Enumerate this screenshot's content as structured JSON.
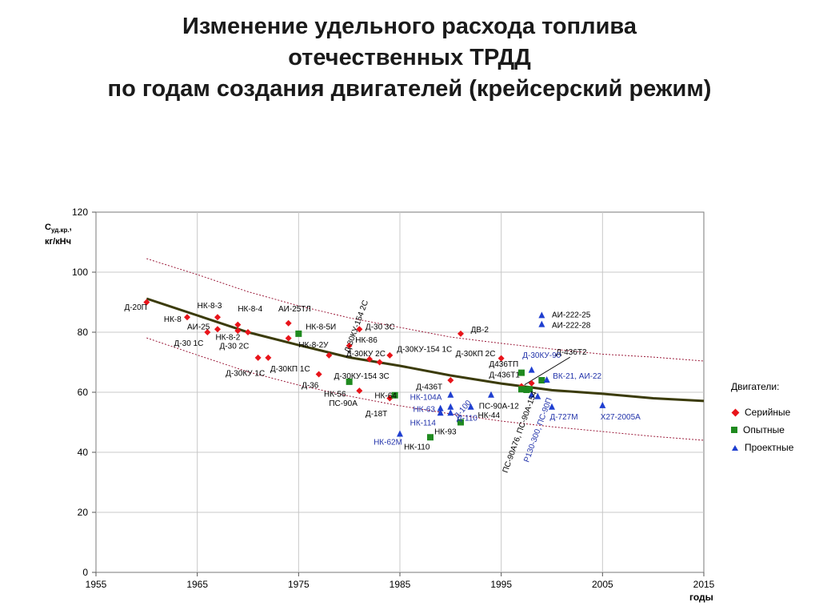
{
  "title_lines": [
    "Изменение удельного расхода топлива",
    "отечественных ТРДД",
    "по годам создания двигателей (крейсерский режим)"
  ],
  "colors": {
    "serial": "#e8141a",
    "experimental": "#1f8a1f",
    "project": "#1f3fd0",
    "trend": "#3b3b0a",
    "band": "#9b1b3a",
    "label_project": "#2233aa"
  },
  "chart_data": {
    "type": "scatter",
    "xlim": [
      1955,
      2015
    ],
    "ylim": [
      0,
      120
    ],
    "x_ticks": [
      1955,
      1965,
      1975,
      1985,
      1995,
      2005,
      2015
    ],
    "y_ticks": [
      0,
      20,
      40,
      60,
      80,
      100,
      120
    ],
    "ylabel_main": "С",
    "ylabel_sub": "уд.кр.",
    "ylabel_suffix": ",",
    "ylabel_units": "кг/кНч",
    "xlabel": "годы",
    "grid": true,
    "legend_title": "Двигатели:",
    "legend": [
      "Серийные",
      "Опытные",
      "Проектные"
    ],
    "trend": [
      [
        1960,
        91.2
      ],
      [
        1965,
        85.6
      ],
      [
        1970,
        80.0
      ],
      [
        1975,
        75.7
      ],
      [
        1980,
        71.6
      ],
      [
        1985,
        68.8
      ],
      [
        1990,
        65.6
      ],
      [
        1995,
        62.9
      ],
      [
        2000,
        60.7
      ],
      [
        2005,
        59.5
      ],
      [
        2010,
        58.0
      ],
      [
        2015,
        57.1
      ]
    ],
    "upper_band": [
      [
        1960,
        104.5
      ],
      [
        1965,
        99.2
      ],
      [
        1970,
        93.5
      ],
      [
        1975,
        88.8
      ],
      [
        1980,
        84.8
      ],
      [
        1985,
        81.6
      ],
      [
        1990,
        78.4
      ],
      [
        1995,
        76.3
      ],
      [
        2000,
        74.4
      ],
      [
        2005,
        72.7
      ],
      [
        2010,
        71.7
      ],
      [
        2015,
        70.4
      ]
    ],
    "lower_band": [
      [
        1960,
        78.1
      ],
      [
        1965,
        72.4
      ],
      [
        1970,
        66.8
      ],
      [
        1975,
        62.4
      ],
      [
        1980,
        58.7
      ],
      [
        1985,
        55.5
      ],
      [
        1990,
        52.8
      ],
      [
        1995,
        50.4
      ],
      [
        2000,
        48.5
      ],
      [
        2005,
        46.9
      ],
      [
        2010,
        45.3
      ],
      [
        2015,
        44.0
      ]
    ],
    "series": [
      {
        "name": "Серийные",
        "marker": "diamond",
        "points": [
          [
            1960,
            90
          ],
          [
            1964,
            85
          ],
          [
            1966,
            80
          ],
          [
            1967,
            85
          ],
          [
            1967,
            81
          ],
          [
            1969,
            82.5
          ],
          [
            1969,
            80.5
          ],
          [
            1970,
            80
          ],
          [
            1971,
            71.5
          ],
          [
            1972,
            71.5
          ],
          [
            1974,
            83
          ],
          [
            1974,
            78
          ],
          [
            1977,
            66
          ],
          [
            1978,
            72.3
          ],
          [
            1980,
            75.5
          ],
          [
            1981,
            60.5
          ],
          [
            1981,
            81
          ],
          [
            1982,
            71
          ],
          [
            1983,
            70
          ],
          [
            1984,
            58
          ],
          [
            1984,
            72.3
          ],
          [
            1990,
            64
          ],
          [
            1991,
            79.5
          ],
          [
            1995,
            71.3
          ],
          [
            1998,
            63
          ],
          [
            1997,
            62
          ]
        ]
      },
      {
        "name": "Опытные",
        "marker": "square",
        "points": [
          [
            1975,
            79.5
          ],
          [
            1980,
            63.5
          ],
          [
            1984.5,
            59
          ],
          [
            1988,
            45
          ],
          [
            1991,
            50
          ],
          [
            1997,
            66.5
          ],
          [
            1997,
            61
          ],
          [
            1997.5,
            60.8
          ],
          [
            1997.8,
            61
          ],
          [
            1999,
            64
          ]
        ]
      },
      {
        "name": "Проектные",
        "marker": "triangle",
        "points": [
          [
            1985,
            46
          ],
          [
            1989,
            54.5
          ],
          [
            1989,
            53
          ],
          [
            1990,
            59
          ],
          [
            1990,
            55
          ],
          [
            1990,
            53
          ],
          [
            1992,
            55
          ],
          [
            1994,
            59
          ],
          [
            1998,
            67.3
          ],
          [
            1998,
            59
          ],
          [
            1998.6,
            58.5
          ],
          [
            1999,
            85.5
          ],
          [
            1999,
            82.5
          ],
          [
            1999.5,
            64
          ],
          [
            2000,
            55
          ],
          [
            2005,
            55.5
          ]
        ]
      }
    ],
    "annotations": [
      {
        "text": "Д-20П",
        "x": 1957.8,
        "y": 87.5,
        "color": "black",
        "rotate": 0
      },
      {
        "text": "НК-8",
        "x": 1961.7,
        "y": 83.5,
        "color": "black",
        "rotate": 0
      },
      {
        "text": "НК-8-3",
        "x": 1965.0,
        "y": 88.0,
        "color": "black",
        "rotate": 0
      },
      {
        "text": "НК-8-4",
        "x": 1969.0,
        "y": 87.0,
        "color": "black",
        "rotate": 0
      },
      {
        "text": "АИ-25ТЛ",
        "x": 1973.0,
        "y": 87.0,
        "color": "black",
        "rotate": 0
      },
      {
        "text": "АИ-25",
        "x": 1964.0,
        "y": 81.0,
        "color": "black",
        "rotate": 0
      },
      {
        "text": "НК-8-5И",
        "x": 1975.7,
        "y": 81.0,
        "color": "black",
        "rotate": 0
      },
      {
        "text": "Д-30 1С",
        "x": 1962.7,
        "y": 75.5,
        "color": "black",
        "rotate": 0
      },
      {
        "text": "НК-8-2",
        "x": 1966.8,
        "y": 77.5,
        "color": "black",
        "rotate": 0
      },
      {
        "text": "Д-30 2С",
        "x": 1967.2,
        "y": 74.5,
        "color": "black",
        "rotate": 0
      },
      {
        "text": "НК-8-2У",
        "x": 1975.0,
        "y": 75.0,
        "color": "black",
        "rotate": 0
      },
      {
        "text": "Д-30КП 1С",
        "x": 1972.2,
        "y": 67.0,
        "color": "black",
        "rotate": 0
      },
      {
        "text": "Д-30КУ 1С",
        "x": 1967.8,
        "y": 65.5,
        "color": "black",
        "rotate": 0
      },
      {
        "text": "Д-30КУ-154 2С",
        "x": 1980.0,
        "y": 73.0,
        "color": "black",
        "rotate": -70
      },
      {
        "text": "Д-30 3С",
        "x": 1981.6,
        "y": 81.0,
        "color": "black",
        "rotate": 0
      },
      {
        "text": "НК-86",
        "x": 1980.6,
        "y": 76.5,
        "color": "black",
        "rotate": 0
      },
      {
        "text": "Д-30КУ 2С",
        "x": 1979.7,
        "y": 72.0,
        "color": "black",
        "rotate": 0
      },
      {
        "text": "Д-30КУ-154 1С",
        "x": 1984.7,
        "y": 73.5,
        "color": "black",
        "rotate": 0
      },
      {
        "text": "Д-30КУ-154 3С",
        "x": 1978.5,
        "y": 64.5,
        "color": "black",
        "rotate": 0
      },
      {
        "text": "Д-36",
        "x": 1975.3,
        "y": 61.5,
        "color": "black",
        "rotate": 0
      },
      {
        "text": "НК-56",
        "x": 1977.5,
        "y": 58.5,
        "color": "black",
        "rotate": 0
      },
      {
        "text": "ПС-90А",
        "x": 1978.0,
        "y": 55.5,
        "color": "black",
        "rotate": 0
      },
      {
        "text": "НК-64",
        "x": 1982.5,
        "y": 58.0,
        "color": "black",
        "rotate": 0
      },
      {
        "text": "Д-18Т",
        "x": 1981.6,
        "y": 52.0,
        "color": "black",
        "rotate": 0
      },
      {
        "text": "ДВ-2",
        "x": 1992.0,
        "y": 80.0,
        "color": "black",
        "rotate": 0
      },
      {
        "text": "Д-30КП 2С",
        "x": 1990.5,
        "y": 72.0,
        "color": "black",
        "rotate": 0
      },
      {
        "text": "Д-436Т",
        "x": 1986.6,
        "y": 61.0,
        "color": "black",
        "rotate": 0
      },
      {
        "text": "Д436ТП",
        "x": 1993.8,
        "y": 68.5,
        "color": "black",
        "rotate": 0
      },
      {
        "text": "Д-436Т1",
        "x": 1993.8,
        "y": 65.0,
        "color": "black",
        "rotate": 0
      },
      {
        "text": "Д-436Т2",
        "x": 2000.4,
        "y": 72.5,
        "color": "black",
        "rotate": 0
      },
      {
        "text": "АИ-222-25",
        "x": 2000.0,
        "y": 85.0,
        "color": "black",
        "rotate": 0
      },
      {
        "text": "АИ-222-28",
        "x": 2000.0,
        "y": 81.5,
        "color": "black",
        "rotate": 0
      },
      {
        "text": "Д-30КУ-90",
        "x": 1997.1,
        "y": 71.5,
        "color": "blue",
        "rotate": 0
      },
      {
        "text": "ВК-21, АИ-22",
        "x": 2000.1,
        "y": 64.5,
        "color": "blue",
        "rotate": 0
      },
      {
        "text": "НК-104А",
        "x": 1986.0,
        "y": 57.5,
        "color": "blue",
        "rotate": 0
      },
      {
        "text": "НК-63",
        "x": 1986.3,
        "y": 53.5,
        "color": "blue",
        "rotate": 0
      },
      {
        "text": "НК-114",
        "x": 1986.0,
        "y": 49.0,
        "color": "blue",
        "rotate": 0
      },
      {
        "text": "Д-100",
        "x": 1990.7,
        "y": 51.0,
        "color": "blue",
        "rotate": -50
      },
      {
        "text": "Д-110",
        "x": 1990.6,
        "y": 50.5,
        "color": "blue",
        "rotate": 0
      },
      {
        "text": "ПС-90А-12",
        "x": 1992.8,
        "y": 54.5,
        "color": "black",
        "rotate": 0
      },
      {
        "text": "НК-44",
        "x": 1992.7,
        "y": 51.5,
        "color": "black",
        "rotate": 0
      },
      {
        "text": "НК-93",
        "x": 1988.4,
        "y": 46.0,
        "color": "black",
        "rotate": 0
      },
      {
        "text": "НК-62М",
        "x": 1982.4,
        "y": 42.5,
        "color": "blue",
        "rotate": 0
      },
      {
        "text": "НК-110",
        "x": 1985.4,
        "y": 41.0,
        "color": "black",
        "rotate": 0
      },
      {
        "text": "Д-727М",
        "x": 1999.8,
        "y": 51.0,
        "color": "blue",
        "rotate": 0
      },
      {
        "text": "Х27-2005А",
        "x": 2004.8,
        "y": 51.0,
        "color": "blue",
        "rotate": 0
      },
      {
        "text": "ПС-90А76, ПС-90А-154",
        "x": 1995.6,
        "y": 33.0,
        "color": "black",
        "rotate": -70
      },
      {
        "text": "Р130-300, ПС-90П",
        "x": 1997.7,
        "y": 36.5,
        "color": "blue",
        "rotate": -70
      }
    ]
  }
}
